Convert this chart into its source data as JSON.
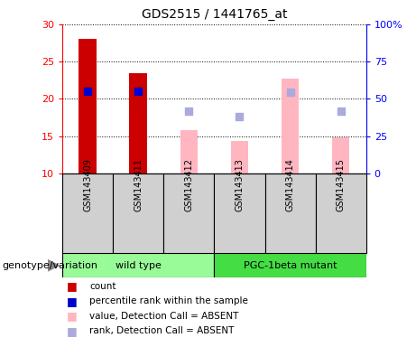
{
  "title": "GDS2515 / 1441765_at",
  "samples": [
    "GSM143409",
    "GSM143411",
    "GSM143412",
    "GSM143413",
    "GSM143414",
    "GSM143415"
  ],
  "count_values": [
    28.0,
    23.5,
    null,
    null,
    null,
    null
  ],
  "percentile_rank_values": [
    21.0,
    21.0,
    null,
    null,
    null,
    null
  ],
  "absent_value": [
    null,
    null,
    15.8,
    14.4,
    22.7,
    14.8
  ],
  "absent_rank": [
    null,
    null,
    18.4,
    17.6,
    20.9,
    18.3
  ],
  "ylim_left": [
    10,
    30
  ],
  "ylim_right": [
    0,
    100
  ],
  "left_ticks": [
    10,
    15,
    20,
    25,
    30
  ],
  "right_ticks": [
    0,
    25,
    50,
    75,
    100
  ],
  "right_tick_labels": [
    "0",
    "25",
    "50",
    "75",
    "100%"
  ],
  "count_color": "#CC0000",
  "percentile_color": "#0000CC",
  "absent_value_color": "#FFB6C1",
  "absent_rank_color": "#AAAADD",
  "bar_width": 0.35,
  "dot_size": 40,
  "wt_color": "#98FB98",
  "mut_color": "#44DD44",
  "sample_bg": "#D0D0D0",
  "legend_label_count": "count",
  "legend_label_rank": "percentile rank within the sample",
  "legend_label_absent_val": "value, Detection Call = ABSENT",
  "legend_label_absent_rank": "rank, Detection Call = ABSENT",
  "xlabel_genotype": "genotype/variation"
}
